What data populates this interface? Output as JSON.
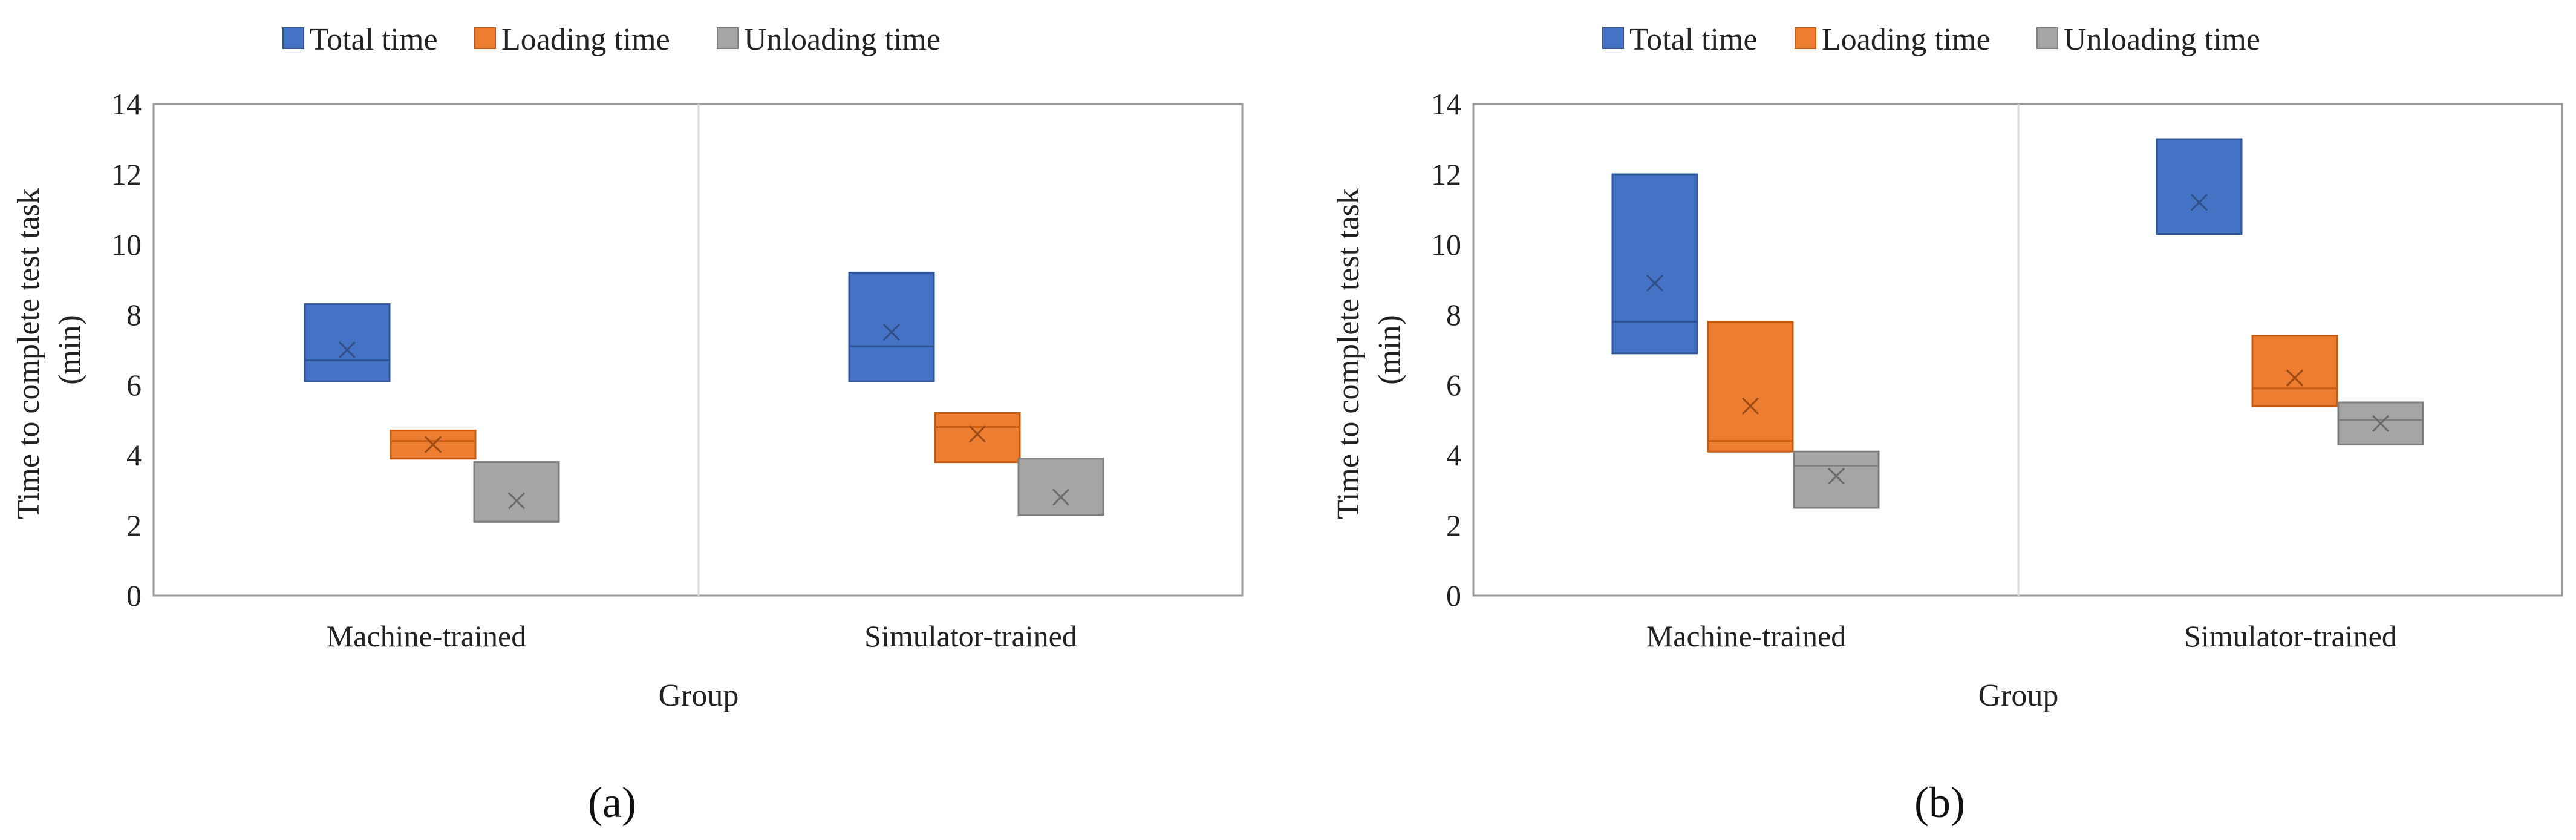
{
  "chart_data": [
    {
      "type": "box",
      "panel_label": "(a)",
      "legend": [
        "Total time",
        "Loading time",
        "Unloading time"
      ],
      "categories": [
        "Machine-trained",
        "Simulator-trained"
      ],
      "xlabel": "Group",
      "ylabel_lines": [
        "Time to complete test task",
        "(min)"
      ],
      "ylim": [
        0,
        14
      ],
      "yticks": [
        0,
        2,
        4,
        6,
        8,
        10,
        12,
        14
      ],
      "series": [
        {
          "name": "Total time",
          "boxes": [
            {
              "q1": 6.1,
              "median": 6.7,
              "q3": 8.3,
              "mean": 7.0
            },
            {
              "q1": 6.1,
              "median": 7.1,
              "q3": 9.2,
              "mean": 7.5
            }
          ]
        },
        {
          "name": "Loading time",
          "boxes": [
            {
              "q1": 3.9,
              "median": 4.4,
              "q3": 4.7,
              "mean": 4.3
            },
            {
              "q1": 3.8,
              "median": 4.8,
              "q3": 5.2,
              "mean": 4.6
            }
          ]
        },
        {
          "name": "Unloading time",
          "boxes": [
            {
              "q1": 2.1,
              "median": 2.1,
              "q3": 3.8,
              "mean": 2.7
            },
            {
              "q1": 2.3,
              "median": 2.3,
              "q3": 3.9,
              "mean": 2.8
            }
          ]
        }
      ]
    },
    {
      "type": "box",
      "panel_label": "(b)",
      "legend": [
        "Total time",
        "Loading time",
        "Unloading time"
      ],
      "categories": [
        "Machine-trained",
        "Simulator-trained"
      ],
      "xlabel": "Group",
      "ylabel_lines": [
        "Time to complete test task",
        "(min)"
      ],
      "ylim": [
        0,
        14
      ],
      "yticks": [
        0,
        2,
        4,
        6,
        8,
        10,
        12,
        14
      ],
      "series": [
        {
          "name": "Total time",
          "boxes": [
            {
              "q1": 6.9,
              "median": 7.8,
              "q3": 12.0,
              "mean": 8.9
            },
            {
              "q1": 10.3,
              "median": 10.3,
              "q3": 13.0,
              "mean": 11.2
            }
          ]
        },
        {
          "name": "Loading time",
          "boxes": [
            {
              "q1": 4.1,
              "median": 4.4,
              "q3": 7.8,
              "mean": 5.4
            },
            {
              "q1": 5.4,
              "median": 5.9,
              "q3": 7.4,
              "mean": 6.2
            }
          ]
        },
        {
          "name": "Unloading time",
          "boxes": [
            {
              "q1": 2.5,
              "median": 3.7,
              "q3": 4.1,
              "mean": 3.4
            },
            {
              "q1": 4.3,
              "median": 5.0,
              "q3": 5.5,
              "mean": 4.9
            }
          ]
        }
      ]
    }
  ],
  "colors": {
    "Total time": {
      "fill": "#4472c4",
      "stroke": "#2f5597",
      "mark": "#2f4f86"
    },
    "Loading time": {
      "fill": "#ed7d31",
      "stroke": "#c55a11",
      "mark": "#9b4a14"
    },
    "Unloading time": {
      "fill": "#a5a5a5",
      "stroke": "#7f7f7f",
      "mark": "#6b6b6b"
    }
  }
}
